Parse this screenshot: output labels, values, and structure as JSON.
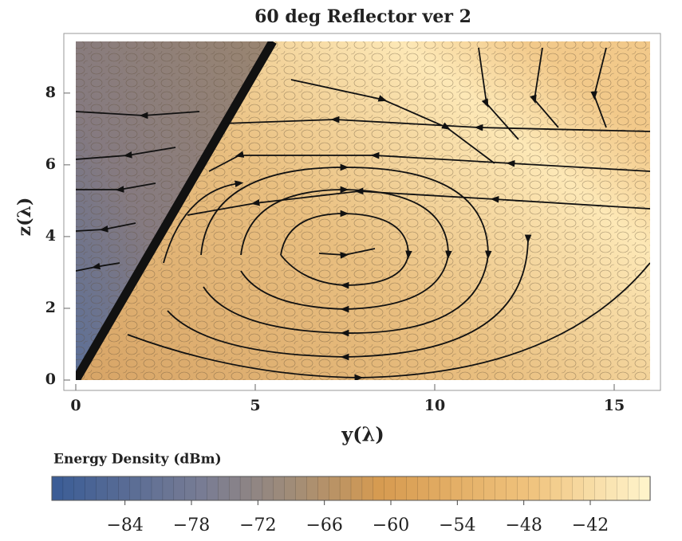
{
  "chart_data": {
    "type": "contour",
    "title": "60 deg Reflector ver 2",
    "x_label": "y(λ)",
    "y_label": "z(λ)",
    "xlim": [
      0,
      16
    ],
    "ylim": [
      0,
      9.44
    ],
    "xticks": [
      0,
      5,
      10,
      15
    ],
    "yticks": [
      0,
      2,
      4,
      6,
      8
    ],
    "colorbar": {
      "label": "Energy Density (dBm)",
      "lim": [
        -90.6,
        -36.6
      ],
      "ticks": [
        {
          "value": -84,
          "label": "−84"
        },
        {
          "value": -78,
          "label": "−78"
        },
        {
          "value": -72,
          "label": "−72"
        },
        {
          "value": -66,
          "label": "−66"
        },
        {
          "value": -60,
          "label": "−60"
        },
        {
          "value": -54,
          "label": "−54"
        },
        {
          "value": -48,
          "label": "−48"
        },
        {
          "value": -42,
          "label": "−42"
        }
      ]
    }
  }
}
